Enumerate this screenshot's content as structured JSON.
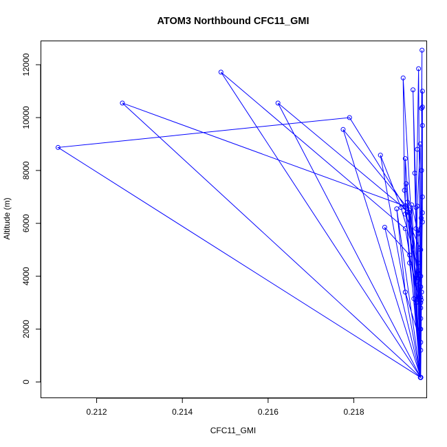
{
  "chart_data": {
    "type": "scatter",
    "title": "ATOM3 Northbound CFC11_GMI",
    "xlabel": "CFC11_GMI",
    "ylabel": "Altitude (m)",
    "xlim": [
      0.2107,
      0.2197
    ],
    "ylim": [
      -600,
      12900
    ],
    "x_ticks": [
      0.212,
      0.214,
      0.216,
      0.218
    ],
    "x_tick_labels": [
      "0.212",
      "0.214",
      "0.216",
      "0.218"
    ],
    "y_ticks": [
      0,
      2000,
      4000,
      6000,
      8000,
      10000,
      12000
    ],
    "y_tick_labels": [
      "0",
      "2000",
      "4000",
      "6000",
      "8000",
      "10000",
      "12000"
    ],
    "grid": false,
    "legend": "none",
    "colors": {
      "series": "#0000ff"
    },
    "series": [
      {
        "points": [
          [
            0.21955,
            170
          ],
          [
            0.21956,
            1200
          ],
          [
            0.21957,
            3100
          ],
          [
            0.2196,
            6400
          ],
          [
            0.21958,
            10350
          ],
          [
            0.21959,
            12550
          ],
          [
            0.21956,
            170
          ],
          [
            0.21955,
            2000
          ],
          [
            0.2195,
            4500
          ],
          [
            0.21945,
            6600
          ],
          [
            0.21948,
            8800
          ],
          [
            0.21951,
            11850
          ],
          [
            0.21956,
            170
          ],
          [
            0.21958,
            3400
          ],
          [
            0.2196,
            7000
          ],
          [
            0.2196,
            9700
          ],
          [
            0.2196,
            11000
          ],
          [
            0.21956,
            170
          ],
          [
            0.2194,
            3150
          ],
          [
            0.2193,
            4500
          ],
          [
            0.21918,
            7250
          ],
          [
            0.21915,
            11500
          ],
          [
            0.21956,
            170
          ],
          [
            0.21948,
            3800
          ],
          [
            0.21945,
            5800
          ],
          [
            0.21942,
            7900
          ],
          [
            0.21938,
            11050
          ],
          [
            0.21956,
            170
          ],
          [
            0.2111,
            8870
          ],
          [
            0.2179,
            10000
          ],
          [
            0.2192,
            6600
          ],
          [
            0.21956,
            170
          ],
          [
            0.2126,
            10550
          ],
          [
            0.2192,
            6650
          ],
          [
            0.21956,
            3000
          ],
          [
            0.21956,
            170
          ],
          [
            0.2149,
            11720
          ],
          [
            0.2192,
            5800
          ],
          [
            0.21956,
            2400
          ],
          [
            0.21956,
            170
          ],
          [
            0.21623,
            10550
          ],
          [
            0.2193,
            6400
          ],
          [
            0.21956,
            2000
          ],
          [
            0.21956,
            170
          ],
          [
            0.21775,
            9550
          ],
          [
            0.2193,
            6500
          ],
          [
            0.21956,
            3600
          ],
          [
            0.21956,
            170
          ],
          [
            0.21862,
            8580
          ],
          [
            0.2191,
            6600
          ],
          [
            0.21956,
            4000
          ],
          [
            0.21956,
            170
          ],
          [
            0.21872,
            5850
          ],
          [
            0.2193,
            4800
          ],
          [
            0.21956,
            2800
          ],
          [
            0.21956,
            170
          ],
          [
            0.219,
            6550
          ],
          [
            0.2192,
            3400
          ],
          [
            0.21956,
            1500
          ],
          [
            0.21956,
            170
          ],
          [
            0.2192,
            8450
          ],
          [
            0.2192,
            6350
          ],
          [
            0.21956,
            5000
          ],
          [
            0.21956,
            170
          ],
          [
            0.21922,
            7500
          ],
          [
            0.21925,
            6800
          ],
          [
            0.21956,
            3200
          ],
          [
            0.21956,
            170
          ],
          [
            0.21935,
            6700
          ],
          [
            0.2195,
            5600
          ],
          [
            0.2196,
            6050
          ],
          [
            0.21958,
            8000
          ],
          [
            0.21956,
            170
          ],
          [
            0.21945,
            3000
          ],
          [
            0.21948,
            6650
          ],
          [
            0.21955,
            9000
          ],
          [
            0.21956,
            170
          ],
          [
            0.21952,
            4200
          ],
          [
            0.2195,
            5650
          ],
          [
            0.21957,
            6200
          ],
          [
            0.2196,
            10400
          ]
        ]
      }
    ]
  }
}
